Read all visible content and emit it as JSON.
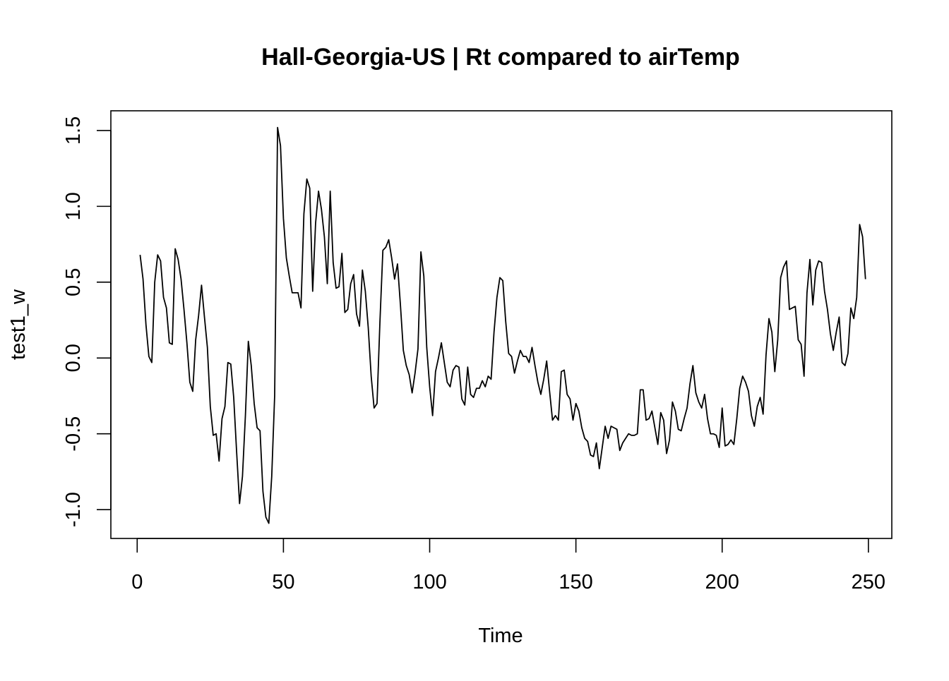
{
  "chart_data": {
    "type": "line",
    "title": "Hall-Georgia-US | Rt compared to airTemp",
    "xlabel": "Time",
    "ylabel": "test1_w",
    "xlim": [
      -9,
      258
    ],
    "ylim": [
      -1.19,
      1.63
    ],
    "x_ticks": [
      0,
      50,
      100,
      150,
      200,
      250
    ],
    "x_tick_labels": [
      "0",
      "50",
      "100",
      "150",
      "200",
      "250"
    ],
    "y_ticks": [
      -1.0,
      -0.5,
      0.0,
      0.5,
      1.0,
      1.5
    ],
    "y_tick_labels": [
      "-1.0",
      "-0.5",
      "0.0",
      "0.5",
      "1.0",
      "1.5"
    ],
    "grid": false,
    "legend": "none",
    "line_color": "#000000",
    "series": [
      {
        "x_start": 1,
        "x_step": 1,
        "values": [
          0.68,
          0.52,
          0.22,
          0.01,
          -0.03,
          0.5,
          0.68,
          0.64,
          0.4,
          0.33,
          0.1,
          0.09,
          0.72,
          0.65,
          0.52,
          0.32,
          0.1,
          -0.16,
          -0.22,
          0.12,
          0.28,
          0.48,
          0.27,
          0.07,
          -0.32,
          -0.51,
          -0.5,
          -0.68,
          -0.4,
          -0.32,
          -0.03,
          -0.04,
          -0.26,
          -0.62,
          -0.96,
          -0.78,
          -0.38,
          0.11,
          -0.05,
          -0.3,
          -0.46,
          -0.48,
          -0.88,
          -1.05,
          -1.09,
          -0.78,
          -0.25,
          1.52,
          1.4,
          0.92,
          0.66,
          0.54,
          0.43,
          0.43,
          0.43,
          0.33,
          0.95,
          1.18,
          1.12,
          0.44,
          0.89,
          1.1,
          0.98,
          0.8,
          0.49,
          1.1,
          0.63,
          0.46,
          0.47,
          0.69,
          0.3,
          0.32,
          0.49,
          0.55,
          0.29,
          0.21,
          0.58,
          0.44,
          0.2,
          -0.12,
          -0.33,
          -0.3,
          0.24,
          0.71,
          0.73,
          0.78,
          0.66,
          0.52,
          0.62,
          0.35,
          0.05,
          -0.05,
          -0.11,
          -0.23,
          -0.1,
          0.06,
          0.7,
          0.54,
          0.07,
          -0.19,
          -0.38,
          -0.09,
          0.0,
          0.1,
          -0.03,
          -0.16,
          -0.19,
          -0.08,
          -0.05,
          -0.06,
          -0.27,
          -0.31,
          -0.06,
          -0.24,
          -0.26,
          -0.2,
          -0.2,
          -0.15,
          -0.19,
          -0.12,
          -0.14,
          0.17,
          0.4,
          0.53,
          0.51,
          0.24,
          0.03,
          0.01,
          -0.1,
          -0.02,
          0.05,
          0.01,
          0.01,
          -0.03,
          0.07,
          -0.05,
          -0.16,
          -0.24,
          -0.14,
          -0.02,
          -0.22,
          -0.41,
          -0.38,
          -0.41,
          -0.09,
          -0.08,
          -0.24,
          -0.27,
          -0.41,
          -0.3,
          -0.35,
          -0.46,
          -0.53,
          -0.55,
          -0.64,
          -0.65,
          -0.56,
          -0.73,
          -0.59,
          -0.45,
          -0.53,
          -0.45,
          -0.46,
          -0.47,
          -0.61,
          -0.56,
          -0.53,
          -0.5,
          -0.51,
          -0.51,
          -0.5,
          -0.21,
          -0.21,
          -0.41,
          -0.4,
          -0.35,
          -0.46,
          -0.57,
          -0.36,
          -0.41,
          -0.63,
          -0.54,
          -0.29,
          -0.35,
          -0.47,
          -0.48,
          -0.4,
          -0.33,
          -0.17,
          -0.05,
          -0.23,
          -0.29,
          -0.33,
          -0.24,
          -0.4,
          -0.5,
          -0.5,
          -0.51,
          -0.59,
          -0.33,
          -0.58,
          -0.57,
          -0.54,
          -0.57,
          -0.4,
          -0.2,
          -0.12,
          -0.16,
          -0.22,
          -0.38,
          -0.45,
          -0.32,
          -0.26,
          -0.37,
          0.02,
          0.26,
          0.17,
          -0.09,
          0.12,
          0.53,
          0.6,
          0.64,
          0.32,
          0.33,
          0.34,
          0.12,
          0.09,
          -0.12,
          0.43,
          0.65,
          0.35,
          0.58,
          0.64,
          0.63,
          0.44,
          0.32,
          0.16,
          0.05,
          0.17,
          0.27,
          -0.03,
          -0.05,
          0.03,
          0.33,
          0.26,
          0.4,
          0.88,
          0.8,
          0.52
        ]
      }
    ]
  }
}
